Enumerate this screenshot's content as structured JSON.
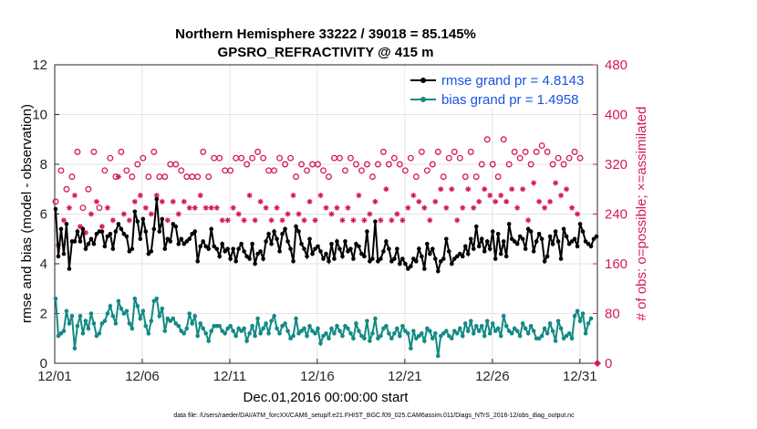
{
  "chart_data": {
    "type": "line",
    "title": "Northern Hemisphere 33222 / 39018 = 85.145%",
    "subtitle": "GPSRO_REFRACTIVITY @ 415 m",
    "xlabel": "Dec.01,2016 00:00:00 start",
    "ylabel": "rmse and bias (model - observation)",
    "y2label": "# of obs: o=possible; ×=assimilated",
    "footnote": "data file: /Users/raeder/DAI/ATM_forcXX/CAM6_setup/f.e21.FHIST_BGC.f09_025.CAM6assim.011/Diags_NTrS_2016-12/obs_diag_output.nc",
    "x_ticks": [
      "12/01",
      "12/06",
      "12/11",
      "12/16",
      "12/21",
      "12/26",
      "12/31"
    ],
    "x_tick_values": [
      0,
      5,
      10,
      15,
      20,
      25,
      30
    ],
    "xlim": [
      0,
      31
    ],
    "ylim": [
      0,
      12
    ],
    "y_ticks": [
      "0",
      "2",
      "4",
      "6",
      "8",
      "10",
      "12"
    ],
    "y2lim": [
      0,
      480
    ],
    "y2_ticks": [
      "0",
      "80",
      "160",
      "240",
      "320",
      "400",
      "480"
    ],
    "colors": {
      "rmse": "#000000",
      "bias": "#138a84",
      "counts": "#d6185f",
      "legend_text": "#1a52e6"
    },
    "legend_position": "top-right",
    "series": [
      {
        "name": "rmse grand pr = 4.8143",
        "axis": "left",
        "values": [
          6.2,
          4.3,
          5.4,
          4.4,
          5.6,
          3.8,
          4.9,
          4.9,
          5.3,
          4.9,
          5.4,
          4.6,
          4.8,
          5.0,
          4.8,
          5.2,
          5.3,
          5.3,
          4.7,
          5.1,
          5.2,
          4.6,
          5.3,
          5.6,
          5.4,
          5.2,
          5.1,
          4.5,
          4.6,
          6.1,
          5.7,
          5.0,
          5.8,
          5.3,
          4.4,
          4.5,
          5.4,
          6.6,
          5.3,
          5.8,
          4.6,
          5.0,
          4.9,
          5.6,
          5.5,
          4.8,
          5.0,
          4.8,
          4.9,
          5.0,
          5.2,
          5.3,
          4.1,
          4.7,
          4.9,
          4.7,
          4.6,
          5.4,
          4.7,
          4.6,
          4.3,
          4.8,
          4.5,
          4.6,
          4.2,
          4.6,
          4.1,
          4.6,
          4.8,
          4.5,
          4.3,
          4.2,
          4.8,
          4.0,
          4.4,
          4.5,
          4.2,
          4.9,
          5.2,
          4.8,
          5.3,
          5.0,
          4.5,
          5.2,
          5.4,
          4.9,
          4.6,
          4.1,
          5.5,
          5.3,
          4.8,
          4.6,
          4.3,
          5.0,
          4.4,
          4.6,
          4.7,
          4.5,
          4.2,
          4.4,
          4.1,
          4.8,
          4.2,
          4.9,
          4.6,
          4.3,
          4.9,
          4.5,
          4.6,
          4.2,
          4.8,
          4.7,
          4.4,
          4.3,
          5.3,
          4.1,
          4.2,
          5.7,
          4.1,
          4.2,
          4.5,
          4.9,
          4.6,
          4.1,
          4.2,
          4.6,
          4.0,
          4.2,
          4.0,
          3.8,
          3.9,
          4.2,
          4.1,
          4.6,
          4.3,
          3.8,
          4.8,
          4.4,
          4.6,
          4.2,
          3.7,
          4.1,
          4.2,
          5.0,
          4.5,
          4.0,
          4.2,
          4.3,
          4.4,
          4.3,
          4.7,
          4.4,
          5.0,
          4.6,
          5.5,
          4.7,
          5.0,
          4.5,
          4.9,
          4.6,
          5.3,
          4.2,
          5.2,
          4.4,
          4.9,
          4.3,
          5.6,
          5.0,
          4.9,
          4.8,
          5.1,
          5.0,
          4.6,
          5.4,
          5.3,
          4.5,
          4.9,
          5.2,
          5.0,
          4.1,
          4.3,
          5.1,
          4.8,
          5.3,
          4.9,
          4.2,
          5.4,
          5.1,
          4.8,
          4.9,
          5.0,
          4.7,
          5.6,
          5.3,
          4.9,
          4.8,
          4.7,
          5.0,
          5.1
        ],
        "note": "approximate, sampled every 6 hours"
      },
      {
        "name": "bias grand pr = 1.4958",
        "axis": "left",
        "values": [
          2.6,
          1.1,
          1.2,
          1.3,
          2.1,
          1.6,
          1.9,
          0.6,
          1.5,
          1.9,
          1.2,
          1.7,
          1.4,
          2.0,
          1.6,
          1.1,
          1.2,
          1.6,
          1.7,
          2.0,
          2.3,
          1.9,
          1.6,
          2.5,
          2.2,
          2.0,
          2.1,
          1.6,
          1.4,
          2.6,
          2.3,
          1.8,
          2.1,
          1.5,
          1.2,
          1.7,
          2.5,
          2.6,
          1.9,
          2.2,
          1.3,
          1.8,
          1.7,
          1.8,
          1.6,
          1.5,
          1.3,
          1.2,
          1.4,
          2.0,
          1.6,
          1.9,
          1.1,
          1.6,
          1.4,
          1.2,
          0.9,
          1.3,
          1.5,
          1.5,
          1.5,
          1.3,
          1.2,
          1.4,
          1.5,
          1.3,
          1.1,
          1.4,
          1.3,
          1.4,
          0.9,
          1.2,
          1.5,
          1.1,
          1.8,
          1.2,
          1.4,
          1.6,
          1.2,
          1.7,
          1.9,
          1.4,
          1.2,
          1.5,
          1.6,
          1.3,
          1.0,
          1.1,
          1.8,
          1.2,
          1.3,
          1.4,
          1.1,
          1.5,
          1.3,
          1.2,
          1.4,
          0.8,
          1.1,
          1.2,
          1.0,
          1.4,
          1.2,
          1.5,
          1.3,
          1.1,
          1.5,
          1.4,
          1.2,
          1.0,
          1.6,
          1.3,
          1.1,
          1.0,
          1.7,
          0.9,
          1.2,
          1.8,
          1.0,
          1.1,
          1.4,
          1.5,
          1.2,
          1.0,
          1.2,
          1.4,
          1.1,
          1.5,
          1.3,
          1.2,
          0.6,
          1.3,
          1.0,
          1.1,
          1.2,
          0.9,
          1.4,
          1.3,
          1.0,
          1.2,
          0.3,
          1.1,
          1.2,
          1.3,
          1.1,
          1.0,
          1.3,
          1.2,
          1.4,
          1.1,
          1.6,
          1.3,
          1.7,
          1.2,
          1.5,
          1.3,
          1.5,
          1.1,
          1.7,
          1.2,
          1.6,
          1.3,
          1.4,
          1.1,
          1.9,
          1.5,
          1.3,
          1.2,
          1.4,
          1.3,
          1.1,
          1.6,
          1.4,
          1.2,
          1.5,
          1.3,
          1.0,
          1.0,
          1.1,
          1.4,
          1.2,
          1.6,
          1.3,
          0.9,
          1.7,
          1.4,
          1.0,
          1.1,
          1.2,
          1.0,
          1.9,
          2.1,
          1.7,
          2.0,
          1.2,
          1.6,
          1.8
        ],
        "note": "approximate, sampled every 6 hours"
      },
      {
        "name": "possible obs (o)",
        "axis": "right",
        "values": [
          260,
          240,
          310,
          300,
          280,
          300,
          300,
          350,
          340,
          290,
          250,
          250,
          280,
          290,
          340,
          300,
          250,
          260,
          310,
          300,
          330,
          300,
          300,
          380,
          340,
          310,
          310,
          300,
          300,
          320,
          320,
          350,
          330,
          320,
          300,
          300,
          340,
          330,
          300,
          310,
          300,
          300,
          320,
          330,
          320,
          300,
          310,
          330,
          300,
          310,
          300,
          310,
          300,
          340,
          340,
          320,
          300,
          320,
          330,
          320,
          330,
          300,
          310,
          300,
          310,
          320,
          330,
          310,
          330,
          300,
          320,
          340,
          330,
          300,
          340,
          340,
          330,
          320,
          310,
          300,
          310,
          320,
          330,
          300,
          320,
          310,
          330,
          340,
          300,
          310,
          320,
          300,
          310,
          330,
          320,
          300,
          320,
          340,
          310,
          320,
          300,
          310,
          330,
          320,
          330,
          300,
          310,
          320,
          330,
          300,
          320,
          340,
          310,
          300,
          320,
          310,
          300,
          330,
          320,
          300,
          340,
          350,
          320,
          300,
          330,
          310,
          320,
          300,
          310,
          320,
          330,
          340,
          300,
          330,
          340,
          320,
          310,
          300,
          320,
          330,
          340,
          350,
          300,
          320,
          330,
          350,
          340,
          300,
          330,
          320,
          300,
          350,
          340,
          320,
          300,
          330,
          320,
          350,
          360,
          340,
          320,
          330,
          300,
          340,
          360,
          330,
          320,
          350,
          340,
          320,
          330,
          350,
          340,
          300,
          320,
          360,
          340,
          330,
          350,
          320,
          340,
          330,
          320,
          360,
          330,
          340,
          320,
          350,
          330,
          320,
          340,
          310,
          330
        ],
        "note": "approximate"
      },
      {
        "name": "assimilated obs (×)",
        "axis": "right",
        "values": [
          200,
          190,
          220,
          230,
          210,
          250,
          240,
          270,
          260,
          220,
          200,
          210,
          230,
          240,
          250,
          260,
          240,
          220,
          240,
          250,
          260,
          230,
          250,
          300,
          260,
          240,
          250,
          230,
          240,
          260,
          250,
          270,
          260,
          250,
          230,
          240,
          260,
          270,
          250,
          260,
          240,
          230,
          250,
          260,
          250,
          240,
          250,
          260,
          240,
          250,
          230,
          250,
          240,
          270,
          260,
          250,
          230,
          250,
          260,
          250,
          260,
          230,
          240,
          230,
          240,
          250,
          260,
          240,
          260,
          230,
          250,
          270,
          260,
          230,
          270,
          260,
          250,
          250,
          240,
          230,
          240,
          250,
          260,
          230,
          250,
          240,
          260,
          270,
          230,
          240,
          250,
          230,
          240,
          260,
          250,
          230,
          250,
          270,
          240,
          250,
          230,
          240,
          260,
          250,
          260,
          230,
          240,
          250,
          260,
          230,
          250,
          270,
          240,
          230,
          250,
          240,
          230,
          260,
          250,
          230,
          270,
          280,
          250,
          230,
          260,
          240,
          250,
          230,
          240,
          250,
          260,
          270,
          230,
          260,
          270,
          250,
          240,
          230,
          250,
          260,
          270,
          280,
          230,
          250,
          260,
          280,
          270,
          230,
          260,
          250,
          230,
          280,
          270,
          250,
          230,
          260,
          250,
          280,
          290,
          270,
          250,
          260,
          230,
          270,
          290,
          260,
          250,
          280,
          270,
          250,
          260,
          280,
          270,
          230,
          250,
          290,
          270,
          260,
          280,
          250,
          270,
          260,
          250,
          290,
          260,
          270,
          250,
          280,
          260,
          250,
          270,
          240,
          260
        ],
        "note": "approximate"
      }
    ],
    "ranking": "last point of counts at 0 near 12/31"
  }
}
